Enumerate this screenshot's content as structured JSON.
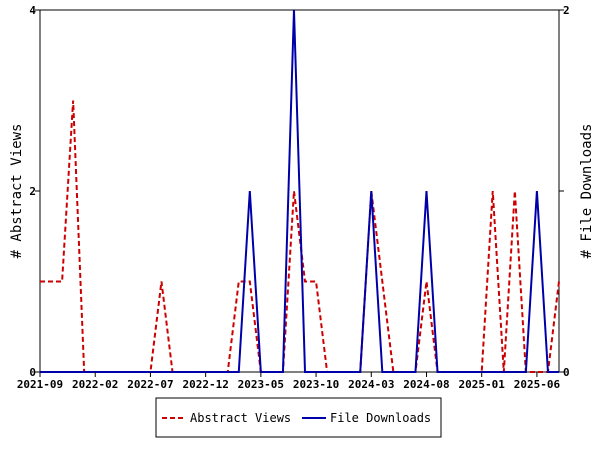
{
  "chart_data": {
    "type": "line",
    "x": [
      "2021-09",
      "2021-10",
      "2021-11",
      "2021-12",
      "2022-01",
      "2022-02",
      "2022-03",
      "2022-04",
      "2022-05",
      "2022-06",
      "2022-07",
      "2022-08",
      "2022-09",
      "2022-10",
      "2022-11",
      "2022-12",
      "2023-01",
      "2023-02",
      "2023-03",
      "2023-04",
      "2023-05",
      "2023-06",
      "2023-07",
      "2023-08",
      "2023-09",
      "2023-10",
      "2023-11",
      "2023-12",
      "2024-01",
      "2024-02",
      "2024-03",
      "2024-04",
      "2024-05",
      "2024-06",
      "2024-07",
      "2024-08",
      "2024-09",
      "2024-10",
      "2024-11",
      "2024-12",
      "2025-01",
      "2025-02",
      "2025-03",
      "2025-04",
      "2025-05",
      "2025-06",
      "2025-07",
      "2025-08"
    ],
    "x_tick_labels": [
      "2021-09",
      "2022-02",
      "2022-07",
      "2022-12",
      "2023-05",
      "2023-10",
      "2024-03",
      "2024-08",
      "2025-01",
      "2025-06"
    ],
    "ylabel": "# Abstract Views",
    "y2label": "# File Downloads",
    "ylim": [
      0,
      4
    ],
    "y_ticks": [
      "0",
      "2",
      "4"
    ],
    "y2lim": [
      0,
      2
    ],
    "y2_ticks": [
      "0",
      "1",
      "2"
    ],
    "legend_position": "bottom",
    "series": [
      {
        "name": "Abstract Views",
        "axis": "left",
        "color": "#cc0000",
        "style": "dashed",
        "values": [
          1,
          1,
          1,
          3,
          0,
          0,
          0,
          0,
          0,
          0,
          0,
          1,
          0,
          0,
          0,
          0,
          0,
          0,
          1,
          1,
          0,
          0,
          0,
          2,
          1,
          1,
          0,
          0,
          0,
          0,
          2,
          1,
          0,
          0,
          0,
          1,
          0,
          0,
          0,
          0,
          0,
          2,
          0,
          2,
          0,
          0,
          0,
          1
        ]
      },
      {
        "name": "File Downloads",
        "axis": "right",
        "color": "#0000aa",
        "style": "solid",
        "values": [
          0,
          0,
          0,
          0,
          0,
          0,
          0,
          0,
          0,
          0,
          0,
          0,
          0,
          0,
          0,
          0,
          0,
          0,
          0,
          1,
          0,
          0,
          0,
          2,
          0,
          0,
          0,
          0,
          0,
          0,
          1,
          0,
          0,
          0,
          0,
          1,
          0,
          0,
          0,
          0,
          0,
          0,
          0,
          0,
          0,
          1,
          0,
          0
        ]
      }
    ]
  }
}
